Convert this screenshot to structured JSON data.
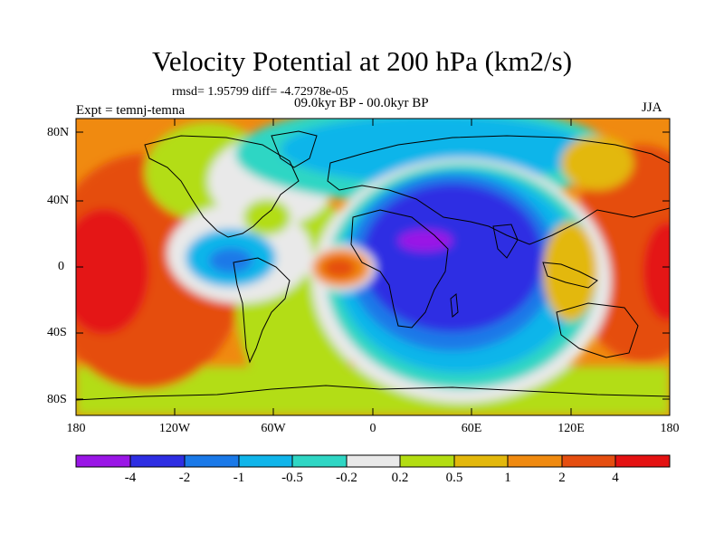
{
  "title": "Velocity Potential at 200 hPa (km2/s)",
  "stats": "rmsd= 1.95799 diff= -4.72978e-05",
  "period": "09.0kyr BP - 00.0kyr BP",
  "experiment": "Expt = temnj-temna",
  "season": "JJA",
  "lat_ticks": [
    "80N",
    "40N",
    "0",
    "40S",
    "80S"
  ],
  "lon_ticks": [
    "180",
    "120W",
    "60W",
    "0",
    "60E",
    "120E",
    "180"
  ],
  "colorbar": {
    "labels": [
      "-4",
      "-2",
      "-1",
      "-0.5",
      "-0.2",
      "0.2",
      "0.5",
      "1",
      "2",
      "4"
    ],
    "colors": [
      "#9a16e6",
      "#2e2ee3",
      "#1a79e8",
      "#10b5ea",
      "#2fd6c4",
      "#e9e9e9",
      "#b3dd12",
      "#e3b80c",
      "#f08a10",
      "#e54e10",
      "#e41212"
    ]
  },
  "chart_data": {
    "type": "contour-map",
    "variable": "Velocity Potential at 200 hPa",
    "units": "km2/s",
    "levels": [
      -4,
      -2,
      -1,
      -0.5,
      -0.2,
      0.2,
      0.5,
      1,
      2,
      4
    ],
    "lon_range": [
      -180,
      180
    ],
    "lat_range": [
      -90,
      90
    ]
  }
}
